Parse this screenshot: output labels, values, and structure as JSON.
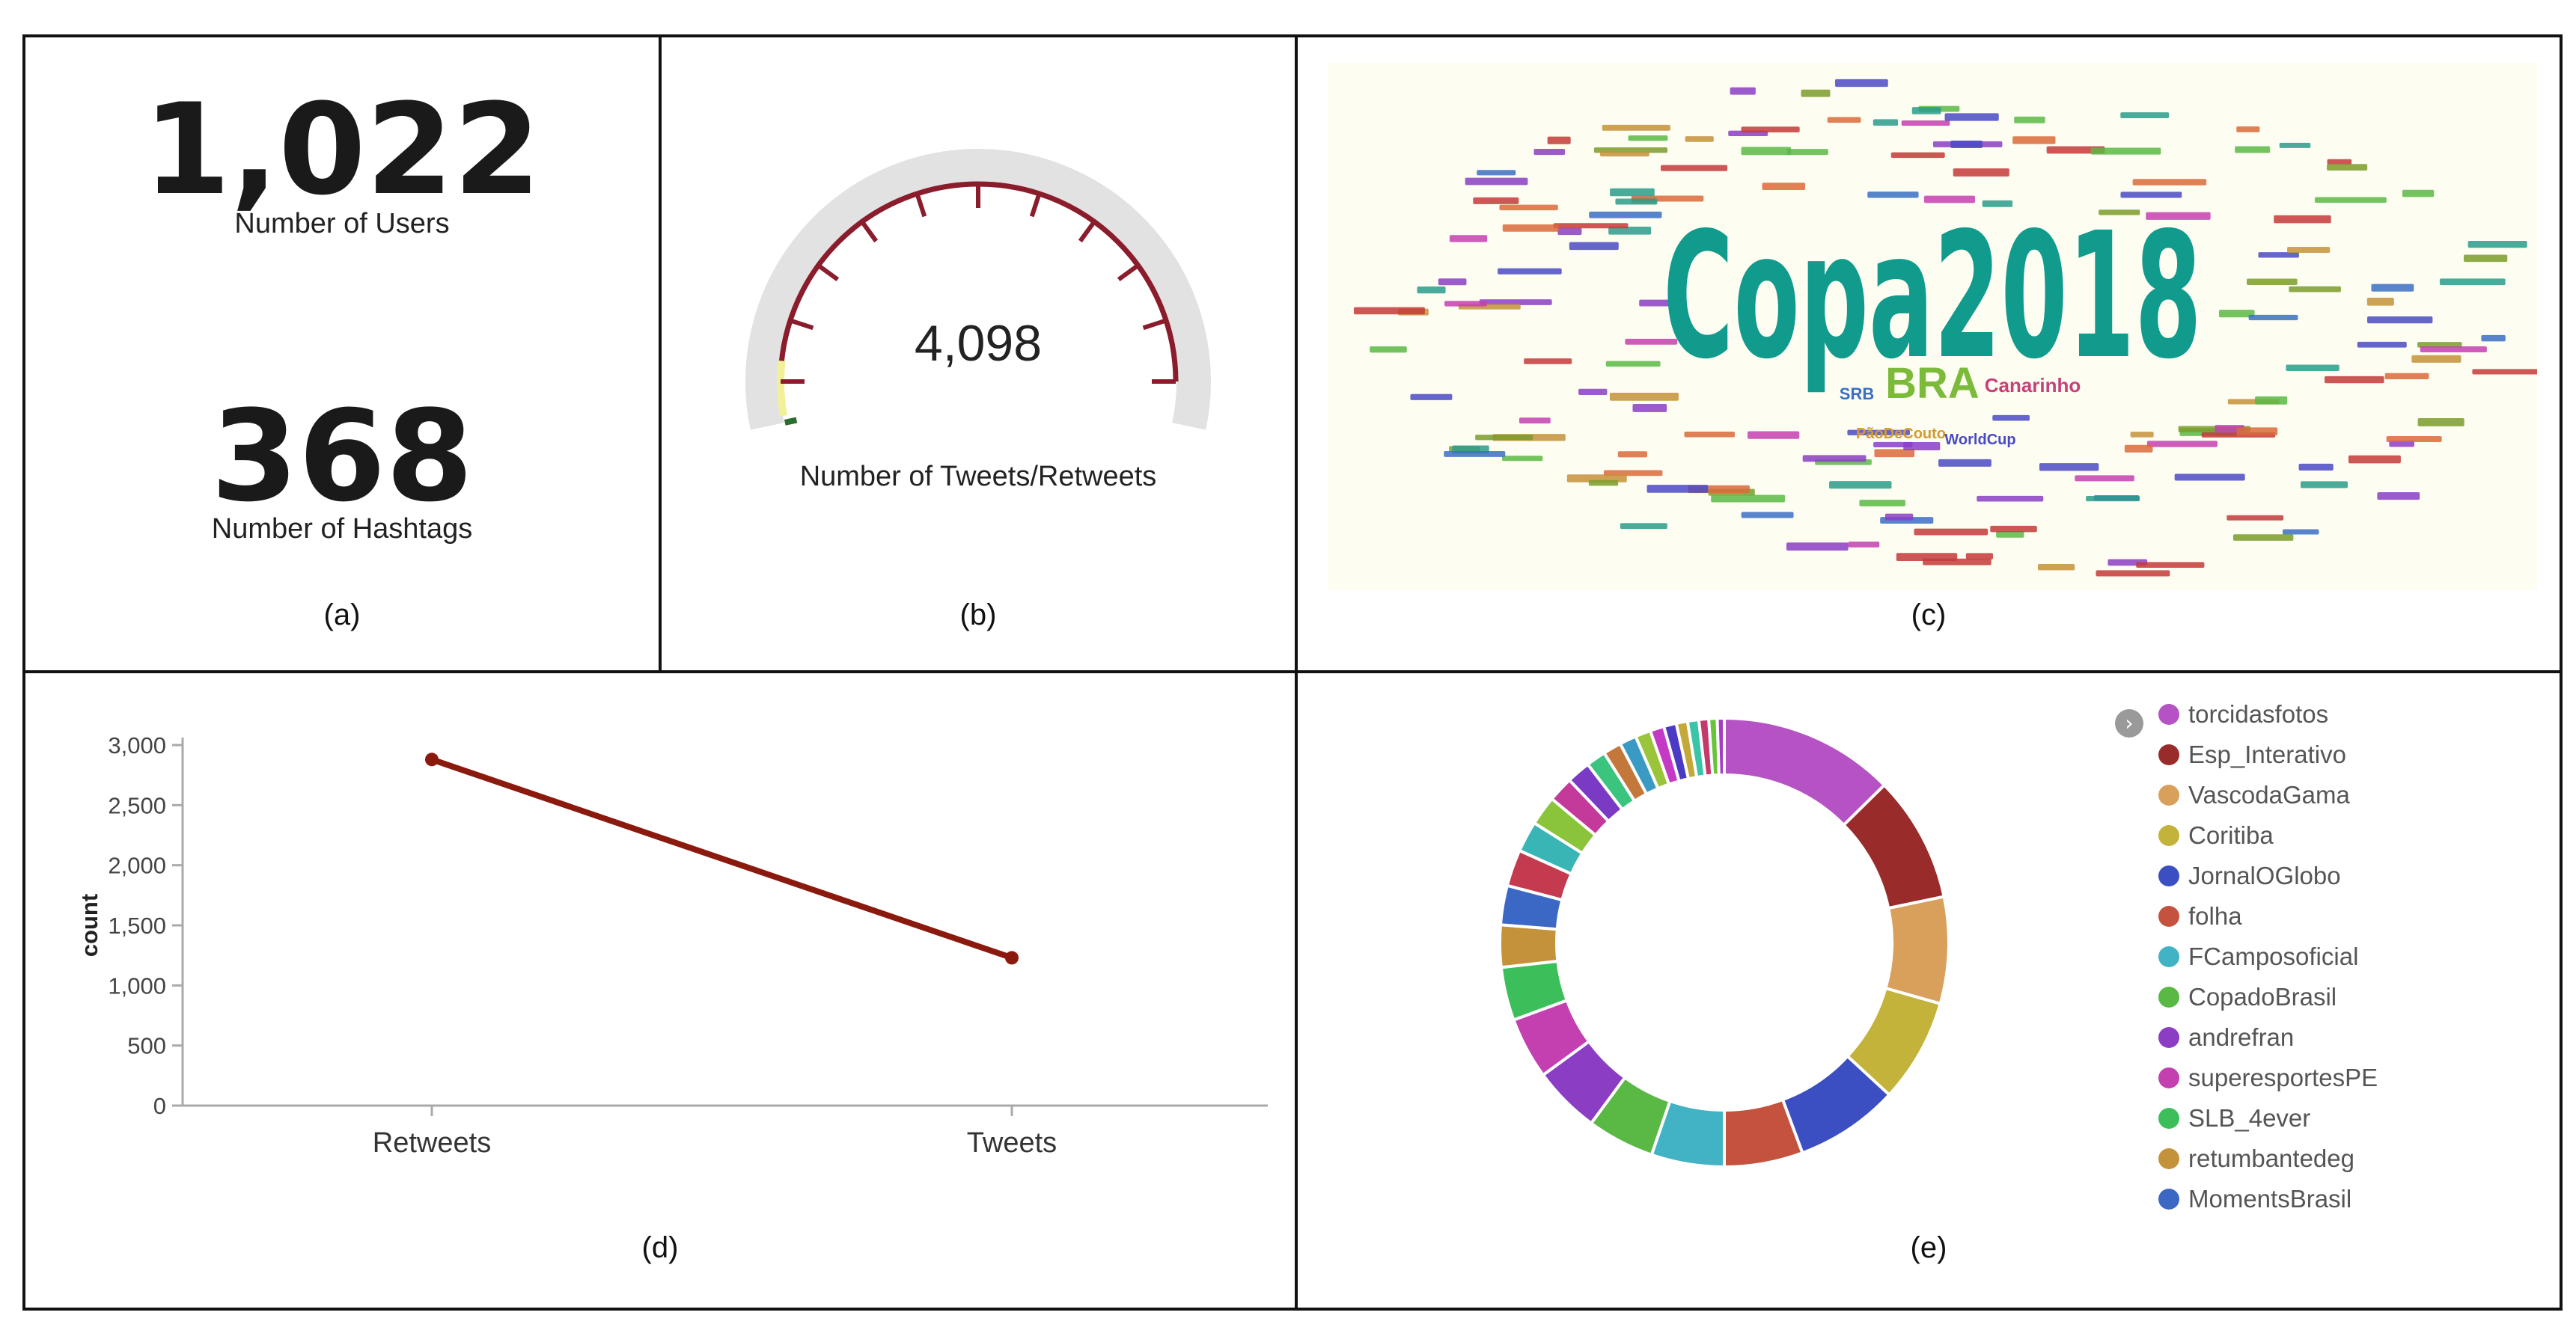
{
  "panels": {
    "a": {
      "caption": "(a)",
      "users_value": "1,022",
      "users_label": "Number of Users",
      "hashtags_value": "368",
      "hashtags_label": "Number of Hashtags"
    },
    "b": {
      "caption": "(b)",
      "gauge_value": "4,098",
      "gauge_label": "Number of Tweets/Retweets",
      "colors": {
        "track": "#e2e2e2",
        "arc": "#8a1c2b",
        "low": "#f3f09a",
        "start": "#2a6e2e"
      }
    },
    "c": {
      "caption": "(c)",
      "main_word": "Copa2018",
      "secondary_words": [
        "BRA",
        "Canarinho",
        "SRB",
        "PãoDeCouto",
        "WorldCup"
      ],
      "colors": {
        "main": "#119b8c",
        "bra": "#7cbb3a",
        "canarinho": "#c8407a"
      }
    },
    "d": {
      "caption": "(d)"
    },
    "e": {
      "caption": "(e)",
      "toggle_icon": "›"
    }
  },
  "chart_data": [
    {
      "type": "line",
      "categories": [
        "Retweets",
        "Tweets"
      ],
      "series": [
        {
          "values": [
            2880,
            1230
          ],
          "color": "#8b1a0e"
        }
      ],
      "xlabel": "",
      "ylabel": "count",
      "ylim": [
        0,
        3000
      ],
      "yticks": [
        "0",
        "500",
        "1,000",
        "1,500",
        "2,000",
        "2,500",
        "3,000"
      ],
      "grid": false
    },
    {
      "type": "pie",
      "donut": true,
      "legend_position": "right",
      "slices": [
        {
          "label": "torcidasfotos",
          "value": 12.5,
          "color": "#b552c4"
        },
        {
          "label": "Esp_Interativo",
          "value": 9.0,
          "color": "#9a2b2b"
        },
        {
          "label": "VascodaGama",
          "value": 7.6,
          "color": "#d9a05c"
        },
        {
          "label": "Coritiba",
          "value": 7.4,
          "color": "#c4b33a"
        },
        {
          "label": "JornalOGlobo",
          "value": 7.4,
          "color": "#3b4fc2"
        },
        {
          "label": "folha",
          "value": 5.6,
          "color": "#c4523f"
        },
        {
          "label": "FCamposoficial",
          "value": 5.2,
          "color": "#42b3c4"
        },
        {
          "label": "CopadoBrasil",
          "value": 4.8,
          "color": "#5ab845"
        },
        {
          "label": "andrefran",
          "value": 4.8,
          "color": "#8b3ec4"
        },
        {
          "label": "superesportesPE",
          "value": 4.4,
          "color": "#c43fb0"
        },
        {
          "label": "SLB_4ever",
          "value": 3.8,
          "color": "#3cbf5a"
        },
        {
          "label": "retumbantedeg",
          "value": 3.0,
          "color": "#c4923a"
        },
        {
          "label": "MomentsBrasil",
          "value": 2.8,
          "color": "#3a68c4"
        },
        {
          "value": 2.6,
          "color": "#c43a4e"
        },
        {
          "value": 2.2,
          "color": "#3ab5b5"
        },
        {
          "value": 2.1,
          "color": "#8ac43a"
        },
        {
          "value": 1.8,
          "color": "#c43a9a"
        },
        {
          "value": 1.7,
          "color": "#7a3ac4"
        },
        {
          "value": 1.4,
          "color": "#3ac47e"
        },
        {
          "value": 1.3,
          "color": "#c4773a"
        },
        {
          "value": 1.2,
          "color": "#3a9ac4"
        },
        {
          "value": 1.1,
          "color": "#9ac43a"
        },
        {
          "value": 1.0,
          "color": "#c43ac4"
        },
        {
          "value": 0.9,
          "color": "#4a3ac4"
        },
        {
          "value": 0.8,
          "color": "#c4a83a"
        },
        {
          "value": 0.8,
          "color": "#3ac4a8"
        },
        {
          "value": 0.7,
          "color": "#c43a6a"
        },
        {
          "value": 0.6,
          "color": "#6ac43a"
        },
        {
          "value": 0.5,
          "color": "#a83ac4"
        }
      ]
    }
  ]
}
